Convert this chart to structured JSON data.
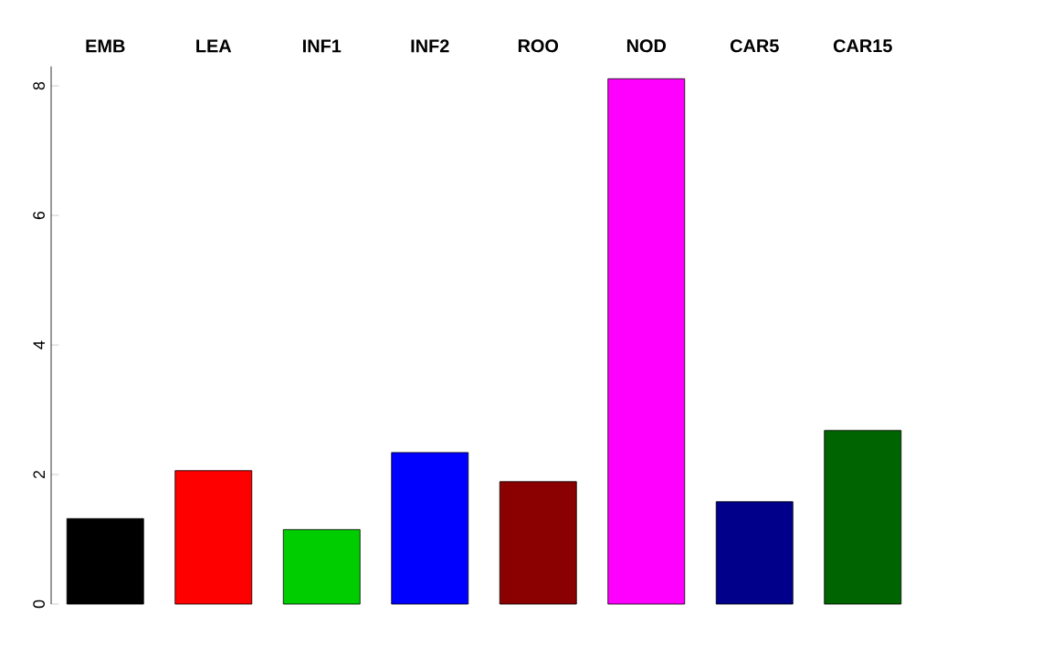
{
  "chart_data": {
    "type": "bar",
    "categories": [
      "EMB",
      "LEA",
      "INF1",
      "INF2",
      "ROO",
      "NOD",
      "CAR5",
      "CAR15"
    ],
    "values": [
      1.32,
      2.06,
      1.15,
      2.34,
      1.89,
      8.11,
      1.58,
      2.68
    ],
    "colors": [
      "#000000",
      "#ff0000",
      "#00cd00",
      "#0000ff",
      "#8b0000",
      "#ff00ff",
      "#00008b",
      "#006400"
    ],
    "ylim": [
      0,
      8.3
    ],
    "yticks": [
      0,
      2,
      4,
      6,
      8
    ],
    "grid": false
  }
}
